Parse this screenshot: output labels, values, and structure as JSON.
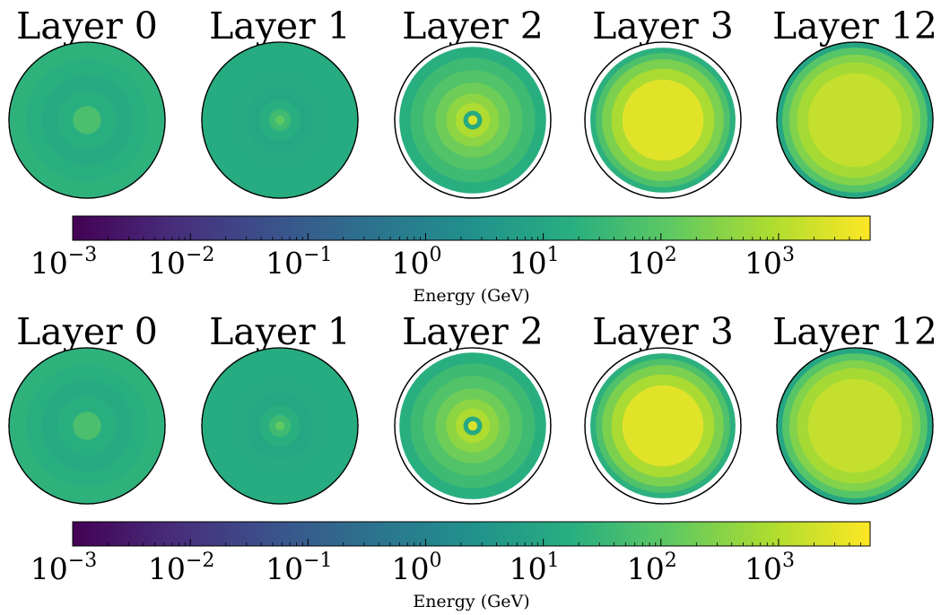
{
  "chart_data": [
    {
      "type": "heatmap",
      "panel": "top",
      "layers": [
        {
          "title": "Layer 0",
          "rings": [
            {
              "r": 0.0,
              "value": 60
            },
            {
              "r": 0.18,
              "value": 18
            },
            {
              "r": 0.38,
              "value": 12
            },
            {
              "r": 0.58,
              "value": 18
            },
            {
              "r": 0.78,
              "value": 22
            },
            {
              "r": 1.0,
              "value": null
            }
          ]
        },
        {
          "title": "Layer 1",
          "rings": [
            {
              "r": 0.0,
              "value": 120
            },
            {
              "r": 0.06,
              "value": 40
            },
            {
              "r": 0.14,
              "value": 18
            },
            {
              "r": 0.26,
              "value": 10
            },
            {
              "r": 0.42,
              "value": 12
            },
            {
              "r": 0.6,
              "value": 14
            },
            {
              "r": 0.78,
              "value": 14
            },
            {
              "r": 1.0,
              "value": null
            }
          ]
        },
        {
          "title": "Layer 2",
          "rings": [
            {
              "r": 0.0,
              "value": 2500
            },
            {
              "r": 0.06,
              "value": 12
            },
            {
              "r": 0.12,
              "value": 900
            },
            {
              "r": 0.22,
              "value": 400
            },
            {
              "r": 0.34,
              "value": 180
            },
            {
              "r": 0.48,
              "value": 80
            },
            {
              "r": 0.64,
              "value": 40
            },
            {
              "r": 0.8,
              "value": 18
            },
            {
              "r": 0.94,
              "value": null
            }
          ]
        },
        {
          "title": "Layer 3",
          "rings": [
            {
              "r": 0.0,
              "value": 3000
            },
            {
              "r": 0.52,
              "value": 800
            },
            {
              "r": 0.66,
              "value": 250
            },
            {
              "r": 0.78,
              "value": 70
            },
            {
              "r": 0.86,
              "value": 20
            },
            {
              "r": 0.93,
              "value": null
            }
          ]
        },
        {
          "title": "Layer 12",
          "rings": [
            {
              "r": 0.0,
              "value": 1500
            },
            {
              "r": 0.6,
              "value": 700
            },
            {
              "r": 0.74,
              "value": 300
            },
            {
              "r": 0.84,
              "value": 90
            },
            {
              "r": 0.93,
              "value": 10
            },
            {
              "r": 1.0,
              "value": null
            }
          ]
        }
      ],
      "colorbar": {
        "scale": "log",
        "colormap": "viridis",
        "vmin": 0.001,
        "vmax": 6000,
        "label": "Energy (GeV)",
        "ticks": [
          {
            "base": "10",
            "exp": "−3",
            "value": 0.001
          },
          {
            "base": "10",
            "exp": "−2",
            "value": 0.01
          },
          {
            "base": "10",
            "exp": "−1",
            "value": 0.1
          },
          {
            "base": "10",
            "exp": "0",
            "value": 1
          },
          {
            "base": "10",
            "exp": "1",
            "value": 10
          },
          {
            "base": "10",
            "exp": "2",
            "value": 100
          },
          {
            "base": "10",
            "exp": "3",
            "value": 1000
          }
        ]
      }
    },
    {
      "type": "heatmap",
      "panel": "bottom",
      "layers": [
        {
          "title": "Layer 0",
          "rings": [
            {
              "r": 0.0,
              "value": 60
            },
            {
              "r": 0.18,
              "value": 18
            },
            {
              "r": 0.38,
              "value": 12
            },
            {
              "r": 0.58,
              "value": 18
            },
            {
              "r": 0.78,
              "value": 22
            },
            {
              "r": 1.0,
              "value": null
            }
          ]
        },
        {
          "title": "Layer 1",
          "rings": [
            {
              "r": 0.0,
              "value": 120
            },
            {
              "r": 0.06,
              "value": 40
            },
            {
              "r": 0.14,
              "value": 18
            },
            {
              "r": 0.26,
              "value": 10
            },
            {
              "r": 0.42,
              "value": 12
            },
            {
              "r": 0.6,
              "value": 14
            },
            {
              "r": 0.78,
              "value": 14
            },
            {
              "r": 1.0,
              "value": null
            }
          ]
        },
        {
          "title": "Layer 2",
          "rings": [
            {
              "r": 0.0,
              "value": 2500
            },
            {
              "r": 0.06,
              "value": 12
            },
            {
              "r": 0.12,
              "value": 900
            },
            {
              "r": 0.22,
              "value": 400
            },
            {
              "r": 0.34,
              "value": 180
            },
            {
              "r": 0.48,
              "value": 80
            },
            {
              "r": 0.64,
              "value": 40
            },
            {
              "r": 0.8,
              "value": 18
            },
            {
              "r": 0.94,
              "value": null
            }
          ]
        },
        {
          "title": "Layer 3",
          "rings": [
            {
              "r": 0.0,
              "value": 3000
            },
            {
              "r": 0.52,
              "value": 800
            },
            {
              "r": 0.66,
              "value": 250
            },
            {
              "r": 0.78,
              "value": 70
            },
            {
              "r": 0.86,
              "value": 20
            },
            {
              "r": 0.93,
              "value": null
            }
          ]
        },
        {
          "title": "Layer 12",
          "rings": [
            {
              "r": 0.0,
              "value": 1500
            },
            {
              "r": 0.6,
              "value": 700
            },
            {
              "r": 0.74,
              "value": 300
            },
            {
              "r": 0.84,
              "value": 90
            },
            {
              "r": 0.93,
              "value": 10
            },
            {
              "r": 1.0,
              "value": null
            }
          ]
        }
      ],
      "colorbar": {
        "scale": "log",
        "colormap": "viridis",
        "vmin": 0.001,
        "vmax": 6000,
        "label": "Energy (GeV)",
        "ticks": [
          {
            "base": "10",
            "exp": "−3",
            "value": 0.001
          },
          {
            "base": "10",
            "exp": "−2",
            "value": 0.01
          },
          {
            "base": "10",
            "exp": "−1",
            "value": 0.1
          },
          {
            "base": "10",
            "exp": "0",
            "value": 1
          },
          {
            "base": "10",
            "exp": "1",
            "value": 10
          },
          {
            "base": "10",
            "exp": "2",
            "value": 100
          },
          {
            "base": "10",
            "exp": "3",
            "value": 1000
          }
        ]
      }
    }
  ]
}
